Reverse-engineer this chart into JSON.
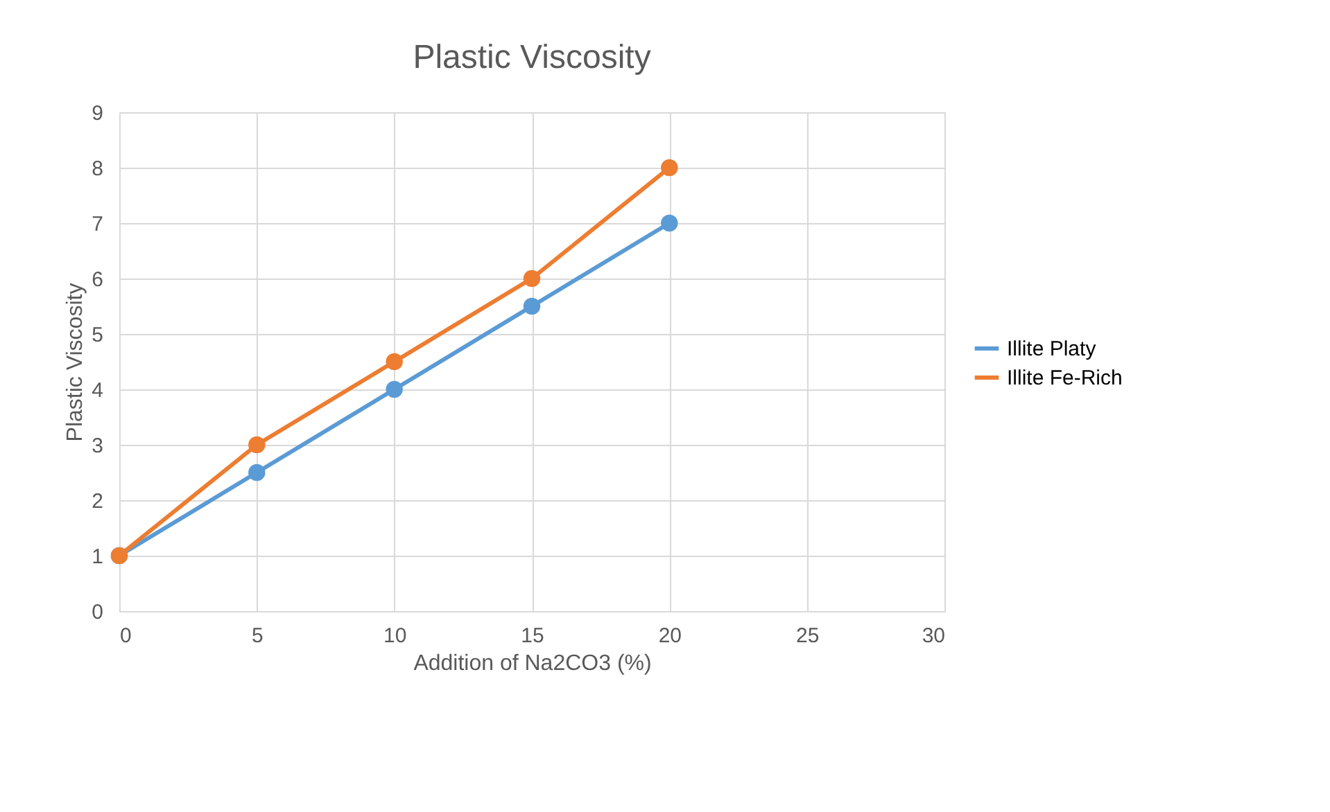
{
  "chart_data": {
    "type": "line",
    "title": "Plastic Viscosity",
    "xlabel": "Addition of Na2CO3 (%)",
    "ylabel": "Plastic Viscosity",
    "x": [
      0,
      5,
      10,
      15,
      20
    ],
    "series": [
      {
        "name": "Illite Platy",
        "color": "#5b9bd5",
        "values": [
          1,
          2.5,
          4,
          5.5,
          7
        ]
      },
      {
        "name": "Illite Fe-Rich",
        "color": "#ed7d31",
        "values": [
          1,
          3,
          4.5,
          6,
          8
        ]
      }
    ],
    "xlim": [
      0,
      30
    ],
    "xticks": [
      0,
      5,
      10,
      15,
      20,
      25,
      30
    ],
    "ylim": [
      0,
      9
    ],
    "yticks": [
      0,
      1,
      2,
      3,
      4,
      5,
      6,
      7,
      8,
      9
    ],
    "grid": true,
    "legend": "right",
    "marker": "circle",
    "line_style": "solid"
  }
}
